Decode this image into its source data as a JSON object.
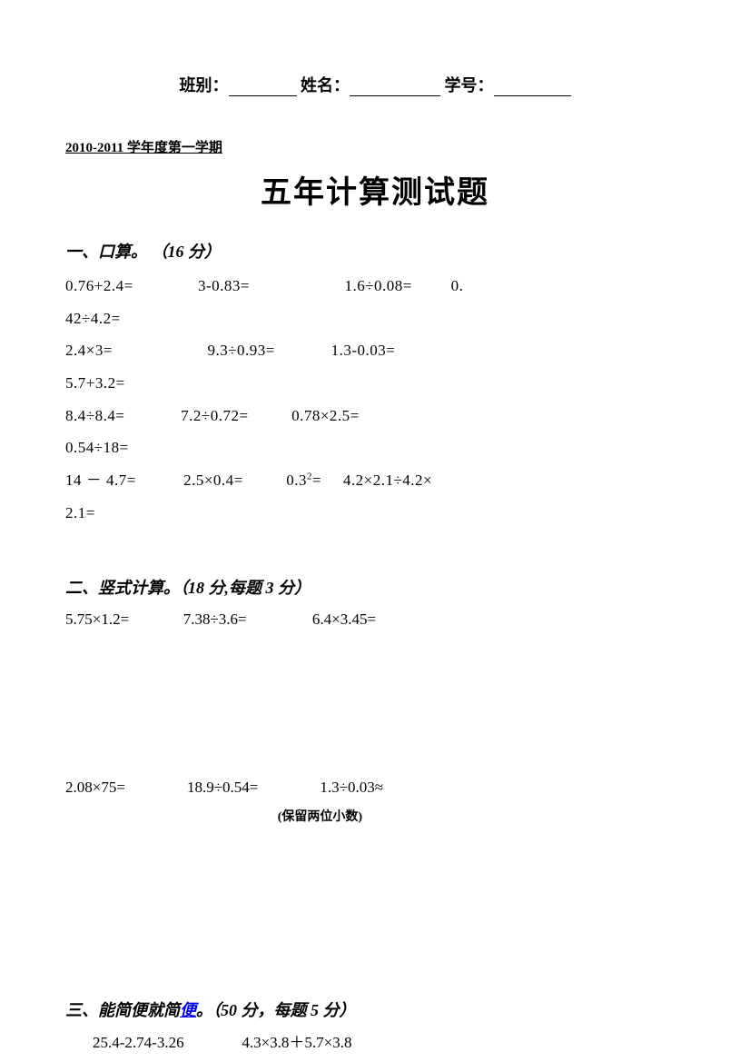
{
  "colors": {
    "text": "#000000",
    "background": "#ffffff",
    "link": "#0000ee"
  },
  "typography": {
    "body_fontsize": 17,
    "heading_fontsize": 18,
    "title_fontsize": 34,
    "note_fontsize": 14,
    "font_family": "SimSun"
  },
  "header": {
    "class_label": "班别：",
    "name_label": "姓名：",
    "id_label": "学号："
  },
  "semester": "2010-2011 学年度第一学期",
  "title": "五年计算测试题",
  "section1": {
    "heading_prefix": "一、口算。",
    "heading_points": "（16 分）",
    "rows": [
      {
        "c1": "0.76+2.4=",
        "c2": "3-0.83=",
        "c3": "1.6÷0.08=",
        "c4": "0."
      },
      {
        "c1": "42÷4.2=",
        "c2": "",
        "c3": "",
        "c4": ""
      },
      {
        "c1": "2.4×3=",
        "c2": "9.3÷0.93=",
        "c3": "1.3-0.03=",
        "c4": ""
      },
      {
        "c1": "5.7+3.2=",
        "c2": "",
        "c3": "",
        "c4": ""
      },
      {
        "c1": "8.4÷8.4=",
        "c2": "7.2÷0.72=",
        "c3": "0.78×2.5=",
        "c4": ""
      },
      {
        "c1": "0.54÷18=",
        "c2": "",
        "c3": "",
        "c4": ""
      },
      {
        "c1": "14 － 4.7=",
        "c2": "2.5×0.4=",
        "c3_pre": "0.3",
        "c3_sup": "2",
        "c3_post": "=",
        "c4": "4.2×2.1÷4.2×"
      },
      {
        "c1": "2.1=",
        "c2": "",
        "c3": "",
        "c4": ""
      }
    ]
  },
  "section2": {
    "heading": "二、竖式计算。（18 分,每题 3 分）",
    "row1": {
      "c1": "5.75×1.2=",
      "c2": "7.38÷3.6=",
      "c3": "6.4×3.45="
    },
    "row2": {
      "c1": "2.08×75=",
      "c2": "18.9÷0.54=",
      "c3": "1.3÷0.03≈"
    },
    "note": "(保留两位小数)"
  },
  "section3": {
    "heading_prefix": "三、能简便就简",
    "heading_link": "便",
    "heading_suffix": "。（50 分，每题 5 分）",
    "row1": {
      "c1": "25.4-2.74-3.26",
      "c2": "4.3×3.8＋5.7×3.8"
    }
  }
}
